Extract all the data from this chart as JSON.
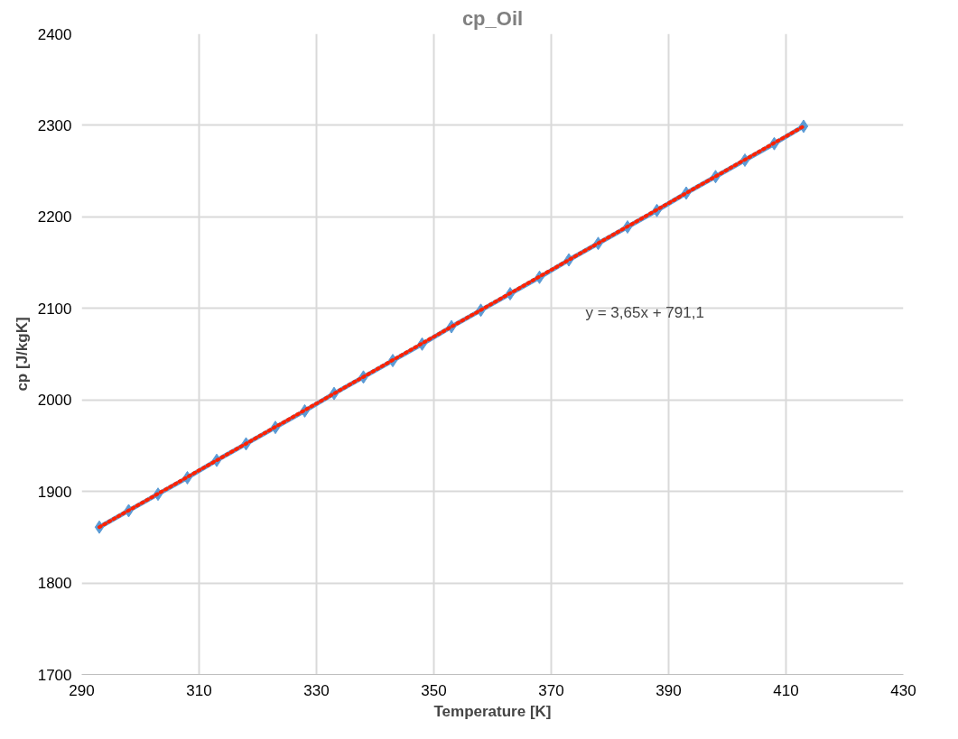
{
  "chart_data": {
    "type": "line",
    "title": "cp_Oil",
    "xlabel": "Temperature [K]",
    "ylabel": "cp [J/kgK]",
    "annotations": [
      "y = 3,65x + 791,1"
    ],
    "x": [
      293,
      298,
      303,
      308,
      313,
      318,
      323,
      328,
      333,
      338,
      343,
      348,
      353,
      358,
      363,
      368,
      373,
      378,
      383,
      388,
      393,
      398,
      403,
      408,
      413
    ],
    "series": [
      {
        "color": "#5b9bd5",
        "marker": "diamond",
        "line_style": "solid",
        "values": [
          1861,
          1879,
          1897,
          1915,
          1934,
          1952,
          1970,
          1988,
          2007,
          2025,
          2043,
          2061,
          2080,
          2098,
          2116,
          2134,
          2153,
          2171,
          2189,
          2207,
          2226,
          2244,
          2262,
          2280,
          2299
        ]
      },
      {
        "type": "line",
        "color": "#ff2200",
        "marker": "none",
        "line_style": "dotted",
        "x": [
          293,
          413
        ],
        "values": [
          1861,
          2299
        ]
      }
    ],
    "xlim": [
      290,
      430
    ],
    "xticks": [
      290,
      310,
      330,
      350,
      370,
      390,
      410,
      430
    ],
    "ylim": [
      1700,
      2400
    ],
    "yticks": [
      1700,
      1800,
      1900,
      2000,
      2100,
      2200,
      2300,
      2400
    ],
    "grid": true
  }
}
